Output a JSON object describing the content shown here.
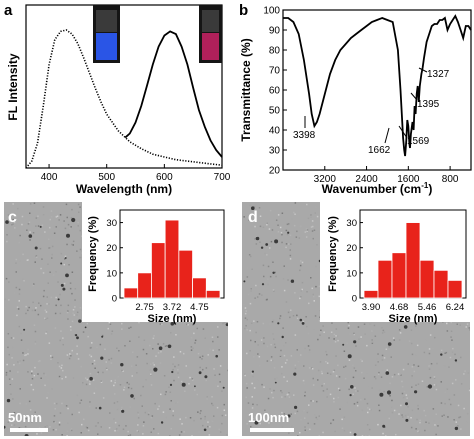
{
  "panels": {
    "a": {
      "letter": "a"
    },
    "b": {
      "letter": "b"
    },
    "c": {
      "letter": "c",
      "scale_bar": "50nm"
    },
    "d": {
      "letter": "d",
      "scale_bar": "100nm"
    }
  },
  "colors": {
    "hist_bar": "#e8231b",
    "tem_bg": "#a9a9a9",
    "vial_blue": "#2a55e6",
    "vial_red": "#b0205a"
  },
  "chart_data": [
    {
      "id": "a",
      "type": "line",
      "xlabel": "Wavelength (nm)",
      "ylabel": "FL Intensity",
      "xlim": [
        360,
        700
      ],
      "xticks": [
        400,
        500,
        600,
        700
      ],
      "yticks": [],
      "grid": false,
      "series": [
        {
          "style": "dotted",
          "x": [
            360,
            370,
            380,
            390,
            400,
            410,
            420,
            430,
            440,
            450,
            460,
            470,
            480,
            490,
            500,
            520,
            540,
            560,
            580,
            600,
            620,
            640,
            660,
            680,
            700
          ],
          "y": [
            0.0,
            0.05,
            0.18,
            0.45,
            0.75,
            0.93,
            0.99,
            1.0,
            0.97,
            0.9,
            0.8,
            0.69,
            0.58,
            0.48,
            0.39,
            0.27,
            0.19,
            0.14,
            0.1,
            0.08,
            0.06,
            0.05,
            0.04,
            0.03,
            0.02
          ]
        },
        {
          "style": "solid",
          "x": [
            532,
            540,
            550,
            560,
            570,
            580,
            590,
            600,
            610,
            620,
            630,
            640,
            650,
            660,
            670,
            680,
            690,
            700
          ],
          "y": [
            0.22,
            0.25,
            0.33,
            0.45,
            0.6,
            0.75,
            0.88,
            0.96,
            0.99,
            0.97,
            0.88,
            0.75,
            0.58,
            0.42,
            0.3,
            0.2,
            0.13,
            0.08
          ]
        }
      ]
    },
    {
      "id": "b",
      "type": "line",
      "xlabel": "Wavenumber (cm",
      "xlabel_sup": "-1",
      "xlabel_end": ")",
      "ylabel": "Transmittance (%)",
      "xlim": [
        4000,
        400
      ],
      "ylim": [
        20,
        100
      ],
      "xticks": [
        3200,
        2400,
        1600,
        800
      ],
      "yticks": [
        20,
        30,
        40,
        50,
        60,
        70,
        80,
        90,
        100
      ],
      "grid": false,
      "series": [
        {
          "x": [
            4000,
            3900,
            3800,
            3700,
            3600,
            3500,
            3450,
            3398,
            3350,
            3300,
            3200,
            3100,
            3000,
            2900,
            2800,
            2700,
            2600,
            2500,
            2400,
            2300,
            2200,
            2100,
            2000,
            1900,
            1800,
            1750,
            1700,
            1680,
            1662,
            1640,
            1620,
            1600,
            1580,
            1569,
            1550,
            1520,
            1500,
            1480,
            1460,
            1440,
            1420,
            1400,
            1395,
            1380,
            1350,
            1327,
            1300,
            1250,
            1200,
            1150,
            1100,
            1050,
            1000,
            950,
            900,
            850,
            800,
            750,
            700,
            650,
            600,
            550,
            500,
            450,
            400
          ],
          "y": [
            96,
            96,
            94,
            88,
            75,
            58,
            48,
            42,
            44,
            48,
            58,
            68,
            75,
            80,
            83,
            86,
            88,
            90,
            92,
            94,
            95,
            96,
            95,
            94,
            80,
            60,
            36,
            30,
            27,
            34,
            45,
            42,
            33,
            31,
            38,
            44,
            40,
            52,
            48,
            58,
            62,
            54,
            56,
            62,
            68,
            71,
            76,
            84,
            88,
            92,
            93,
            93,
            95,
            95,
            96,
            90,
            93,
            95,
            97,
            94,
            90,
            86,
            92,
            92,
            90
          ]
        }
      ],
      "annotations": [
        "3398",
        "1662",
        "1569",
        "1395",
        "1327"
      ]
    },
    {
      "id": "c",
      "type": "bar",
      "xlabel": "Size (nm)",
      "ylabel": "Frequency (%)",
      "xticklabels": [
        "2.75",
        "3.72",
        "4.75"
      ],
      "ylim": [
        0,
        35
      ],
      "yticks": [
        0,
        10,
        20,
        30
      ],
      "values": [
        4,
        10,
        22,
        31,
        19,
        8,
        3
      ]
    },
    {
      "id": "d",
      "type": "bar",
      "xlabel": "Size (nm)",
      "ylabel": "Frequency (%)",
      "xticklabels": [
        "3.90",
        "4.68",
        "5.46",
        "6.24"
      ],
      "ylim": [
        0,
        35
      ],
      "yticks": [
        0,
        10,
        20,
        30
      ],
      "values": [
        3,
        15,
        18,
        30,
        15,
        11,
        7
      ]
    }
  ]
}
